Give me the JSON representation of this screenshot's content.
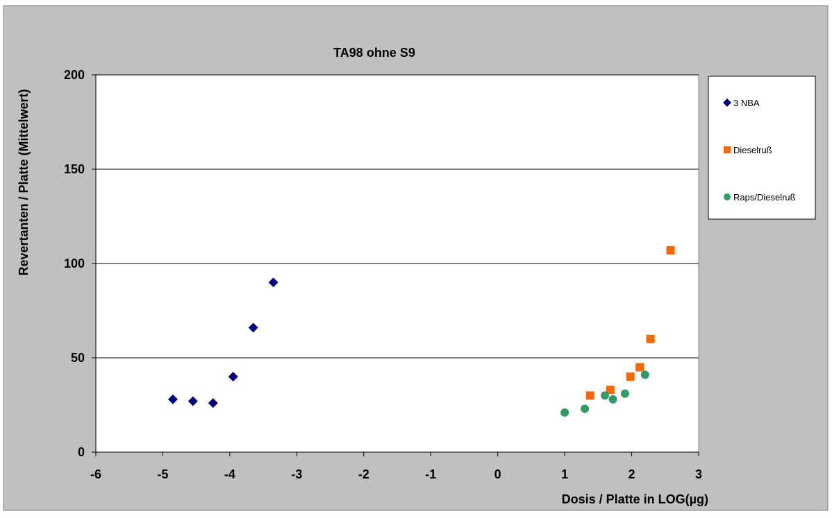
{
  "chart_data": {
    "type": "scatter",
    "title": "TA98 ohne S9",
    "xlabel": "Dosis / Platte in LOG(µg)",
    "ylabel": "Revertanten / Platte (Mittelwert)",
    "xlim": [
      -6,
      3
    ],
    "ylim": [
      0,
      200
    ],
    "xticks": [
      -6,
      -5,
      -4,
      -3,
      -2,
      -1,
      0,
      1,
      2,
      3
    ],
    "yticks": [
      0,
      50,
      100,
      150,
      200
    ],
    "grid": "horizontal major gridlines",
    "legend_position": "right",
    "series": [
      {
        "name": "3 NBA",
        "marker": "diamond",
        "color": "#000080",
        "points": [
          {
            "x": -4.85,
            "y": 28
          },
          {
            "x": -4.55,
            "y": 27
          },
          {
            "x": -4.25,
            "y": 26
          },
          {
            "x": -3.95,
            "y": 40
          },
          {
            "x": -3.65,
            "y": 66
          },
          {
            "x": -3.35,
            "y": 90
          }
        ]
      },
      {
        "name": "Dieselruß",
        "marker": "square",
        "color": "#FF6600",
        "points": [
          {
            "x": 1.38,
            "y": 30
          },
          {
            "x": 1.68,
            "y": 33
          },
          {
            "x": 1.98,
            "y": 40
          },
          {
            "x": 2.12,
            "y": 45
          },
          {
            "x": 2.28,
            "y": 60
          },
          {
            "x": 2.58,
            "y": 107
          }
        ]
      },
      {
        "name": "Raps/Dieselruß",
        "marker": "circle",
        "color": "#339966",
        "points": [
          {
            "x": 1.0,
            "y": 21
          },
          {
            "x": 1.3,
            "y": 23
          },
          {
            "x": 1.6,
            "y": 30
          },
          {
            "x": 1.72,
            "y": 28
          },
          {
            "x": 1.9,
            "y": 31
          },
          {
            "x": 2.2,
            "y": 41
          }
        ]
      }
    ]
  },
  "colors": {
    "chart_area_background": "#C0C0C0",
    "plot_area_background": "#FFFFFF",
    "gridline": "#000000",
    "axis": "#000000"
  }
}
